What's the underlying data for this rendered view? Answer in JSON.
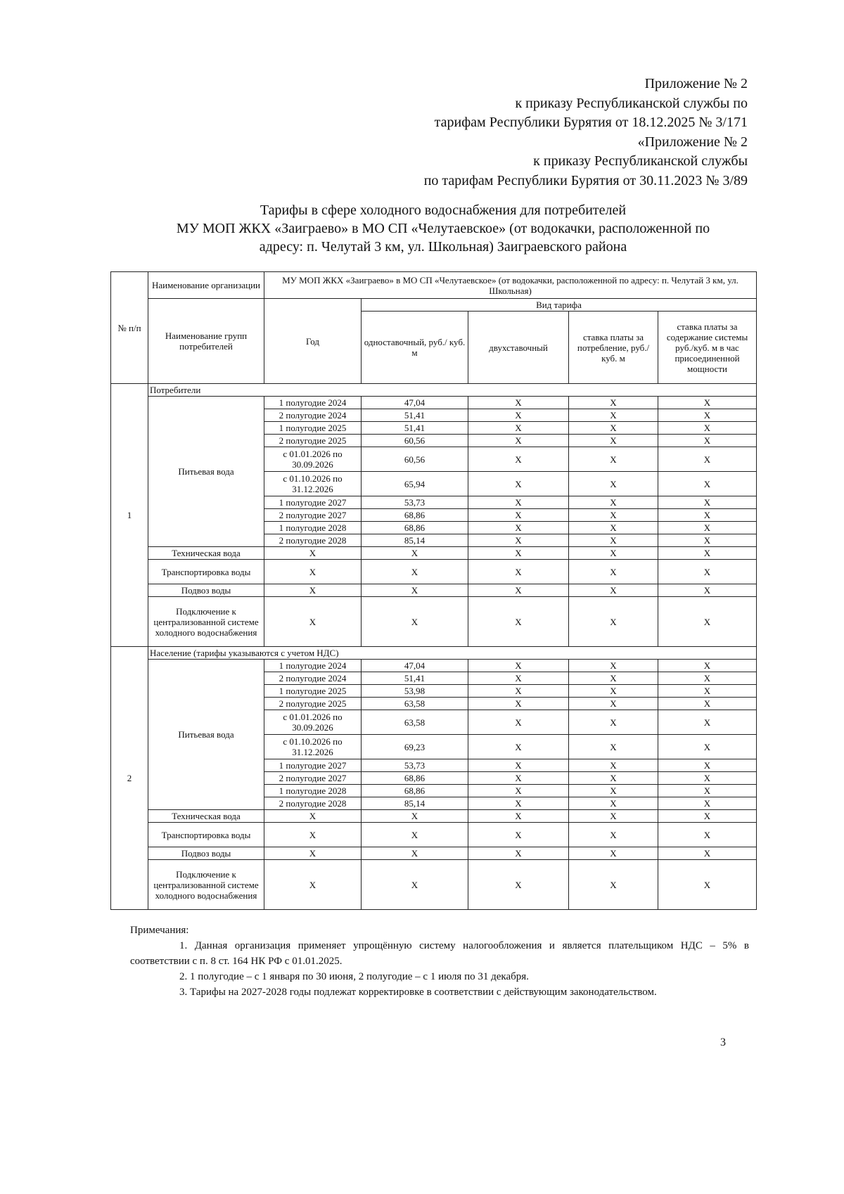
{
  "header_lines": [
    "Приложение № 2",
    "к приказу Республиканской службы по",
    "тарифам Республики Бурятия от 18.12.2025 № 3/171",
    "«Приложение № 2",
    "к приказу Республиканской службы",
    "по тарифам Республики Бурятия от 30.11.2023 № 3/89"
  ],
  "title_lines": [
    "Тарифы в сфере холодного водоснабжения для потребителей",
    "МУ МОП ЖКХ «Заиграево» в МО СП «Челутаевское» (от водокачки, расположенной по",
    "адресу: п. Челутай 3 км, ул. Школьная) Заиграевского района"
  ],
  "table": {
    "col_num": "№ п/п",
    "col_org": "Наименование организации",
    "org_name": "МУ МОП ЖКХ «Заиграево» в МО СП «Челутаевское» (от водокачки, расположенной по адресу: п. Челутай 3 км, ул. Школьная)",
    "col_group": "Наименование групп потребителей",
    "col_year": "Год",
    "col_tariff_type": "Вид тарифа",
    "col_single": "одноставочный, руб./ куб. м",
    "col_double": "двухставочный",
    "col_consumption": "ставка платы за потребление, руб./ куб. м",
    "col_capacity": "ставка платы за содержание системы руб./куб. м в час присоединенной мощности",
    "x": "X",
    "sections": [
      {
        "num": "1",
        "title": "Потребители",
        "drinking_label": "Питьевая вода",
        "drinking": [
          {
            "period": "1 полугодие 2024",
            "value": "47,04"
          },
          {
            "period": "2 полугодие 2024",
            "value": "51,41"
          },
          {
            "period": "1 полугодие 2025",
            "value": "51,41"
          },
          {
            "period": "2 полугодие 2025",
            "value": "60,56"
          },
          {
            "period": "с 01.01.2026 по 30.09.2026",
            "value": "60,56"
          },
          {
            "period": "с 01.10.2026 по 31.12.2026",
            "value": "65,94"
          },
          {
            "period": "1 полугодие 2027",
            "value": "53,73"
          },
          {
            "period": "2 полугодие 2027",
            "value": "68,86"
          },
          {
            "period": "1 полугодие 2028",
            "value": "68,86"
          },
          {
            "period": "2 полугодие 2028",
            "value": "85,14"
          }
        ],
        "other": [
          "Техническая вода",
          "Транспортировка воды",
          "Подвоз воды",
          "Подключение к централизованной системе холодного водоснабжения"
        ]
      },
      {
        "num": "2",
        "title": "Население (тарифы указываются с учетом НДС)",
        "drinking_label": "Питьевая вода",
        "drinking": [
          {
            "period": "1 полугодие 2024",
            "value": "47,04"
          },
          {
            "period": "2 полугодие 2024",
            "value": "51,41"
          },
          {
            "period": "1 полугодие 2025",
            "value": "53,98"
          },
          {
            "period": "2 полугодие 2025",
            "value": "63,58"
          },
          {
            "period": "с 01.01.2026 по 30.09.2026",
            "value": "63,58"
          },
          {
            "period": "с 01.10.2026 по 31.12.2026",
            "value": "69,23"
          },
          {
            "period": "1 полугодие 2027",
            "value": "53,73"
          },
          {
            "period": "2 полугодие 2027",
            "value": "68,86"
          },
          {
            "period": "1 полугодие 2028",
            "value": "68,86"
          },
          {
            "period": "2 полугодие 2028",
            "value": "85,14"
          }
        ],
        "other": [
          "Техническая вода",
          "Транспортировка воды",
          "Подвоз воды",
          "Подключение к централизованной системе холодного водоснабжения"
        ]
      }
    ]
  },
  "notes": {
    "heading": "Примечания:",
    "items": [
      "1. Данная организация применяет упрощённую систему налогообложения и является плательщиком НДС – 5% в соответствии с п. 8 ст. 164 НК РФ с 01.01.2025.",
      "2. 1 полугодие – с 1 января по 30 июня, 2 полугодие – с 1 июля по 31 декабря.",
      "3. Тарифы на 2027-2028 годы подлежат корректировке в соответствии с действующим законодательством."
    ]
  },
  "page_number": "3"
}
